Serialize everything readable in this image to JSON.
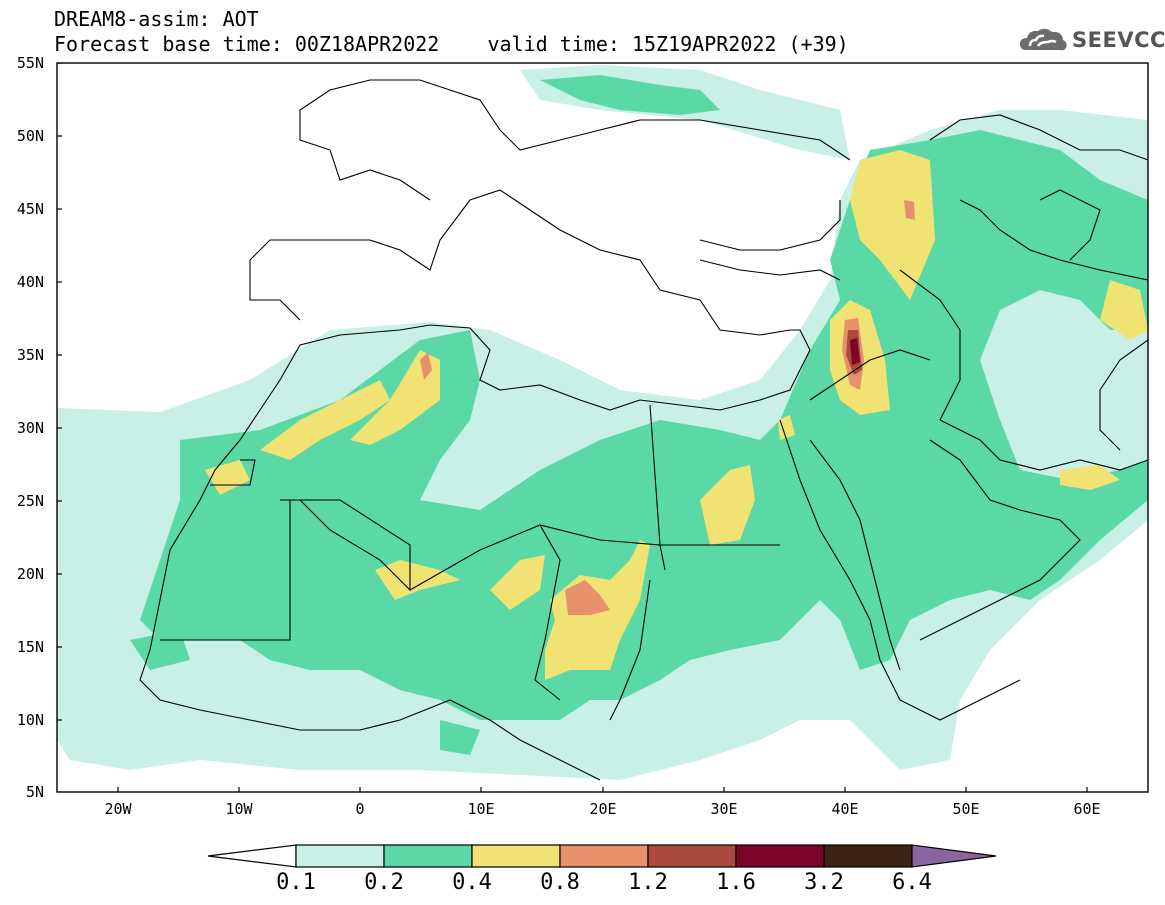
{
  "header": {
    "title_line1": "DREAM8-assim: AOT",
    "title_line2": "Forecast base time: 00Z18APR2022    valid time: 15Z19APR2022 (+39)"
  },
  "logo": {
    "text": "SEEVCCC",
    "icon": "cloud-icon"
  },
  "map": {
    "lat_range": [
      5,
      55
    ],
    "lon_range": [
      -25,
      65
    ],
    "lat_labels": [
      "55N",
      "50N",
      "45N",
      "40N",
      "35N",
      "30N",
      "25N",
      "20N",
      "15N",
      "10N",
      "5N"
    ],
    "lon_labels": [
      "20W",
      "10W",
      "0",
      "10E",
      "20E",
      "30E",
      "40E",
      "50E",
      "60E"
    ],
    "max_aot_location": "Syria-Iraq border near 35N 41E"
  },
  "colorbar": {
    "labels": [
      "0.1",
      "0.2",
      "0.4",
      "0.8",
      "1.2",
      "1.6",
      "3.2",
      "6.4"
    ],
    "colors": [
      "#ffffff",
      "#c8f0e6",
      "#5ad9a7",
      "#f1e274",
      "#e7916a",
      "#a94a3c",
      "#7b0427",
      "#3c2314",
      "#8a64a0"
    ]
  }
}
